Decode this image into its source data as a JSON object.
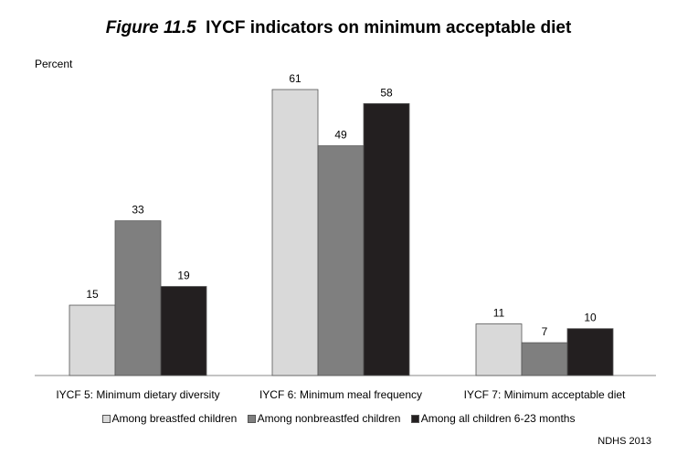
{
  "title": {
    "figure_label": "Figure 11.5",
    "text": "IYCF indicators on minimum acceptable diet"
  },
  "source": "NDHS 2013",
  "colors": {
    "series": [
      "#d9d9d9",
      "#7f7f7f",
      "#231f20"
    ],
    "axis": "#888888"
  },
  "chart_data": {
    "type": "bar",
    "ylabel": "Percent",
    "ylim": [
      0,
      70
    ],
    "grid": false,
    "legend_position": "bottom",
    "categories": [
      "IYCF 5: Minimum dietary diversity",
      "IYCF 6: Minimum meal frequency",
      "IYCF 7: Minimum acceptable diet"
    ],
    "series": [
      {
        "name": "Among breastfed children",
        "values": [
          15,
          61,
          11
        ]
      },
      {
        "name": "Among nonbreastfed children",
        "values": [
          33,
          49,
          7
        ]
      },
      {
        "name": "Among all children 6-23 months",
        "values": [
          19,
          58,
          10
        ]
      }
    ]
  }
}
